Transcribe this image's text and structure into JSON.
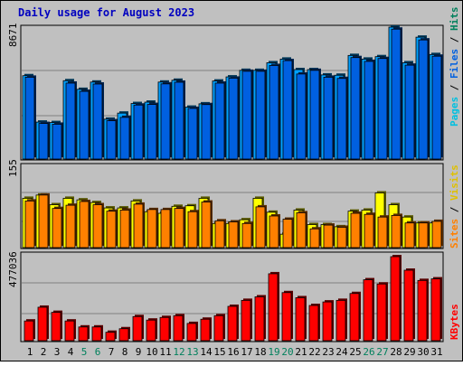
{
  "chart_data": [
    {
      "type": "bar",
      "title": "Daily usage for August 2023",
      "categories": [
        "1",
        "2",
        "3",
        "4",
        "5",
        "6",
        "7",
        "8",
        "9",
        "10",
        "11",
        "12",
        "13",
        "14",
        "15",
        "16",
        "17",
        "18",
        "19",
        "20",
        "21",
        "22",
        "23",
        "24",
        "25",
        "26",
        "27",
        "28",
        "29",
        "30",
        "31"
      ],
      "weekend_days": [
        "5",
        "6",
        "12",
        "13",
        "19",
        "20",
        "26",
        "27"
      ],
      "ylabel": "Pages / Files / Hits",
      "ylim": [
        0,
        8671
      ],
      "ytick_label": "8671",
      "series": [
        {
          "name": "Hits",
          "values": [
            5480,
            2430,
            2400,
            5150,
            4580,
            5060,
            2620,
            3020,
            3650,
            3740,
            5060,
            5180,
            3410,
            3630,
            5130,
            5400,
            5830,
            5830,
            6330,
            6570,
            5880,
            5880,
            5530,
            5510,
            6810,
            6570,
            6730,
            8671,
            6330,
            8010,
            6870
          ]
        },
        {
          "name": "Files",
          "values": [
            5380,
            2340,
            2290,
            4990,
            4450,
            4930,
            2520,
            2740,
            3550,
            3590,
            4940,
            5050,
            3330,
            3580,
            4990,
            5320,
            5770,
            5770,
            6150,
            6470,
            5590,
            5830,
            5380,
            5300,
            6670,
            6420,
            6610,
            8540,
            6170,
            7830,
            6760
          ]
        },
        {
          "name": "Pages",
          "values": [
            0,
            0,
            0,
            0,
            0,
            0,
            0,
            0,
            0,
            0,
            0,
            0,
            0,
            0,
            0,
            0,
            0,
            0,
            0,
            0,
            0,
            0,
            0,
            0,
            0,
            0,
            0,
            0,
            0,
            0,
            0
          ]
        }
      ]
    },
    {
      "type": "bar",
      "categories": [
        "1",
        "2",
        "3",
        "4",
        "5",
        "6",
        "7",
        "8",
        "9",
        "10",
        "11",
        "12",
        "13",
        "14",
        "15",
        "16",
        "17",
        "18",
        "19",
        "20",
        "21",
        "22",
        "23",
        "24",
        "25",
        "26",
        "27",
        "28",
        "29",
        "30",
        "31"
      ],
      "ylabel": "Sites / Visits",
      "ylim": [
        0,
        155
      ],
      "ytick_label": "155",
      "series": [
        {
          "name": "Visits",
          "values": [
            92,
            98,
            80,
            92,
            89,
            84,
            74,
            74,
            87,
            67,
            64,
            77,
            78,
            92,
            45,
            45,
            52,
            92,
            66,
            25,
            70,
            43,
            43,
            39,
            68,
            70,
            102,
            80,
            57,
            46,
            46
          ]
        },
        {
          "name": "Sites",
          "values": [
            87,
            98,
            73,
            79,
            86,
            80,
            68,
            70,
            81,
            71,
            71,
            73,
            67,
            85,
            50,
            48,
            45,
            76,
            59,
            53,
            65,
            35,
            42,
            38,
            64,
            62,
            57,
            60,
            46,
            46,
            49
          ]
        }
      ]
    },
    {
      "type": "bar",
      "categories": [
        "1",
        "2",
        "3",
        "4",
        "5",
        "6",
        "7",
        "8",
        "9",
        "10",
        "11",
        "12",
        "13",
        "14",
        "15",
        "16",
        "17",
        "18",
        "19",
        "20",
        "21",
        "22",
        "23",
        "24",
        "25",
        "26",
        "27",
        "28",
        "29",
        "30",
        "31"
      ],
      "ylabel": "KBytes",
      "ylim": [
        0,
        477036
      ],
      "ytick_label": "477036",
      "series": [
        {
          "name": "KBytes",
          "values": [
            112000,
            190000,
            161000,
            112000,
            78000,
            78000,
            48000,
            68000,
            137000,
            117000,
            132000,
            142000,
            98000,
            122000,
            142000,
            195000,
            229000,
            249000,
            380000,
            273000,
            244000,
            200000,
            220000,
            229000,
            268000,
            346000,
            322000,
            477036,
            400000,
            342000,
            351000
          ]
        }
      ]
    }
  ],
  "colors": {
    "background": "#C0C0C0",
    "title": "#0000C0",
    "hits": "#00A0FF",
    "files": "#0060E0",
    "pages": "#00C0E0",
    "visits": "#FFFF00",
    "sites": "#FF8000",
    "kbytes": "#FF0000",
    "weekend": "#00805C",
    "weekday": "#000000"
  }
}
